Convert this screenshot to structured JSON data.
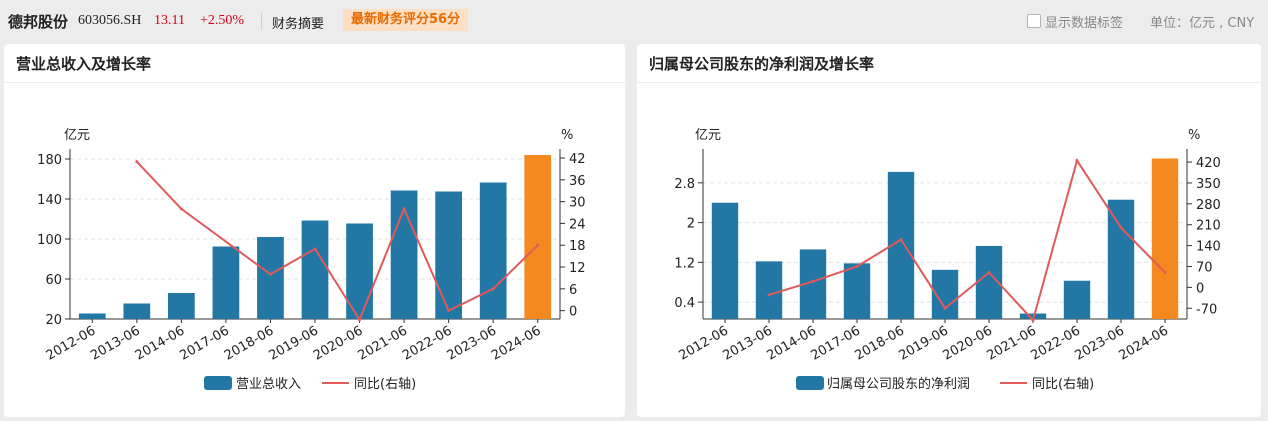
{
  "header": {
    "stock_name": "德邦股份",
    "stock_code": "603056.SH",
    "price": "13.11",
    "change": "+2.50%",
    "summary_label": "财务摘要",
    "score_label": "最新财务评分56分",
    "show_labels_text": "显示数据标签",
    "unit_text": "单位：亿元 , CNY"
  },
  "colors": {
    "bar": "#2277a4",
    "bar_latest": "#f48a1f",
    "line": "#e05a5a"
  },
  "chart_data": [
    {
      "type": "bar",
      "title": "营业总收入及增长率",
      "ylabel_left": "亿元",
      "ylabel_right": "%",
      "categories": [
        "2012-06",
        "2013-06",
        "2014-06",
        "2017-06",
        "2018-06",
        "2019-06",
        "2020-06",
        "2021-06",
        "2022-06",
        "2023-06",
        "2024-06"
      ],
      "series": [
        {
          "name": "营业总收入",
          "type": "bar",
          "values": [
            25.5,
            35.5,
            46,
            92.5,
            102,
            118.5,
            115.5,
            148.5,
            147.5,
            156.5,
            184
          ]
        },
        {
          "name": "同比(右轴)",
          "type": "line",
          "axis": "right",
          "values": [
            null,
            41,
            28,
            null,
            10,
            17,
            -2.5,
            28,
            0,
            6,
            18
          ]
        }
      ],
      "left_axis": {
        "ylim": [
          20,
          185
        ],
        "ticks": [
          20,
          60,
          100,
          140,
          180
        ]
      },
      "right_axis": {
        "ylim": [
          -2.3,
          43.1
        ],
        "ticks": [
          0,
          6,
          12,
          18,
          24,
          30,
          36,
          42
        ]
      },
      "legend": [
        "营业总收入",
        "同比(右轴)"
      ]
    },
    {
      "type": "bar",
      "title": "归属母公司股东的净利润及增长率",
      "ylabel_left": "亿元",
      "ylabel_right": "%",
      "categories": [
        "2012-06",
        "2013-06",
        "2014-06",
        "2017-06",
        "2018-06",
        "2019-06",
        "2020-06",
        "2021-06",
        "2022-06",
        "2023-06",
        "2024-06"
      ],
      "series": [
        {
          "name": "归属母公司股东的净利润",
          "type": "bar",
          "values": [
            2.4,
            1.22,
            1.46,
            1.18,
            3.02,
            1.05,
            1.53,
            0.17,
            0.83,
            2.46,
            3.29
          ]
        },
        {
          "name": "同比(右轴)",
          "type": "line",
          "axis": "right",
          "values": [
            null,
            -25,
            20,
            70,
            160,
            -70,
            50,
            -110,
            425,
            200,
            50
          ]
        }
      ],
      "left_axis": {
        "ylim": [
          0.06,
          3.38
        ],
        "ticks": [
          0.4,
          1.2,
          2,
          2.8
        ]
      },
      "right_axis": {
        "ylim": [
          -106,
          447
        ],
        "ticks": [
          -70,
          0,
          70,
          140,
          210,
          280,
          350,
          420
        ]
      },
      "legend": [
        "归属母公司股东的净利润",
        "同比(右轴)"
      ]
    }
  ]
}
